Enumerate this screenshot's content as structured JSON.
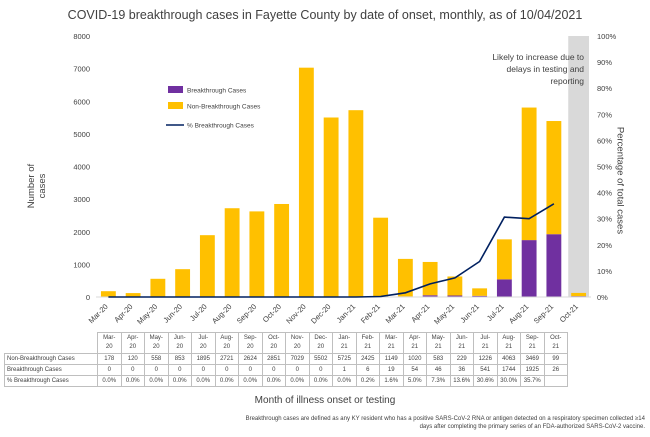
{
  "title": "COVID-19 breakthrough cases in Fayette County by date of onset, monthly, as of 10/04/2021",
  "annotation": "Likely to increase due to delays in testing and reporting",
  "footnote": "Breakthrough cases are defined as any KY resident who has a positive SARS-CoV-2 RNA or antigen detected on a respiratory specimen collected ≥14 days after completing the primary series of an FDA-authorized SARS-CoV-2 vaccine.",
  "colors": {
    "breakthrough": "#7030a0",
    "non_breakthrough": "#ffc000",
    "percent_line": "#002060",
    "shade": "#d9d9d9"
  },
  "chart_data": {
    "type": "bar",
    "stacked": true,
    "title": "COVID-19 breakthrough cases in Fayette County by date of onset, monthly, as of 10/04/2021",
    "xlabel": "Month of illness onset or testing",
    "ylabel": "Number of cases",
    "y2label": "Percentage of total cases",
    "ylim": [
      0,
      8000
    ],
    "y2lim": [
      0,
      100
    ],
    "yticks": [
      "0",
      "1000",
      "2000",
      "3000",
      "4000",
      "5000",
      "6000",
      "7000",
      "8000"
    ],
    "y2ticks": [
      "0%",
      "10%",
      "20%",
      "30%",
      "40%",
      "50%",
      "60%",
      "70%",
      "80%",
      "90%",
      "100%"
    ],
    "categories": [
      "Mar-20",
      "Apr-20",
      "May-20",
      "Jun-20",
      "Jul-20",
      "Aug-20",
      "Sep-20",
      "Oct-20",
      "Nov-20",
      "Dec-20",
      "Jan-21",
      "Feb-21",
      "Mar-21",
      "Apr-21",
      "May-21",
      "Jun-21",
      "Jul-21",
      "Aug-21",
      "Sep-21",
      "Oct-21"
    ],
    "table_headers": [
      [
        "Mar-",
        "20"
      ],
      [
        "Apr-",
        "20"
      ],
      [
        "May-",
        "20"
      ],
      [
        "Jun-",
        "20"
      ],
      [
        "Jul-",
        "20"
      ],
      [
        "Aug-",
        "20"
      ],
      [
        "Sep-",
        "20"
      ],
      [
        "Oct-",
        "20"
      ],
      [
        "Nov-",
        "20"
      ],
      [
        "Dec-",
        "20"
      ],
      [
        "Jan-",
        "21"
      ],
      [
        "Feb-",
        "21"
      ],
      [
        "Mar-",
        "21"
      ],
      [
        "Apr-",
        "21"
      ],
      [
        "May-",
        "21"
      ],
      [
        "Jun-",
        "21"
      ],
      [
        "Jul-",
        "21"
      ],
      [
        "Aug-",
        "21"
      ],
      [
        "Sep-",
        "21"
      ],
      [
        "Oct-",
        "21"
      ]
    ],
    "shaded_category": "Oct-21",
    "legend_position": "upper-left",
    "series": [
      {
        "name": "Non-Breakthrough Cases",
        "kind": "bar",
        "values": [
          178,
          120,
          558,
          853,
          1895,
          2721,
          2624,
          2851,
          7029,
          5502,
          5725,
          2425,
          1149,
          1020,
          583,
          229,
          1226,
          4063,
          3469,
          99
        ],
        "labels": [
          "178",
          "120",
          "558",
          "853",
          "1895",
          "2721",
          "2624",
          "2851",
          "7029",
          "5502",
          "5725",
          "2425",
          "1149",
          "1020",
          "583",
          "229",
          "1226",
          "4063",
          "3469",
          "99"
        ]
      },
      {
        "name": "Breakthrough Cases",
        "kind": "bar",
        "values": [
          0,
          0,
          0,
          0,
          0,
          0,
          0,
          0,
          0,
          0,
          1,
          6,
          19,
          54,
          46,
          36,
          541,
          1744,
          1925,
          26
        ],
        "labels": [
          "0",
          "0",
          "0",
          "0",
          "0",
          "0",
          "0",
          "0",
          "0",
          "0",
          "1",
          "6",
          "19",
          "54",
          "46",
          "36",
          "541",
          "1744",
          "1925",
          "26"
        ]
      },
      {
        "name": "% Breakthrough Cases",
        "kind": "line",
        "axis": "right",
        "values": [
          0,
          0,
          0,
          0,
          0,
          0,
          0,
          0,
          0,
          0,
          0,
          0.2,
          1.6,
          5.0,
          7.3,
          13.6,
          30.6,
          30.0,
          35.7,
          null
        ],
        "labels": [
          "0.0%",
          "0.0%",
          "0.0%",
          "0.0%",
          "0.0%",
          "0.0%",
          "0.0%",
          "0.0%",
          "0.0%",
          "0.0%",
          "0.0%",
          "0.2%",
          "1.6%",
          "5.0%",
          "7.3%",
          "13.6%",
          "30.6%",
          "30.0%",
          "35.7%",
          ""
        ]
      }
    ]
  }
}
